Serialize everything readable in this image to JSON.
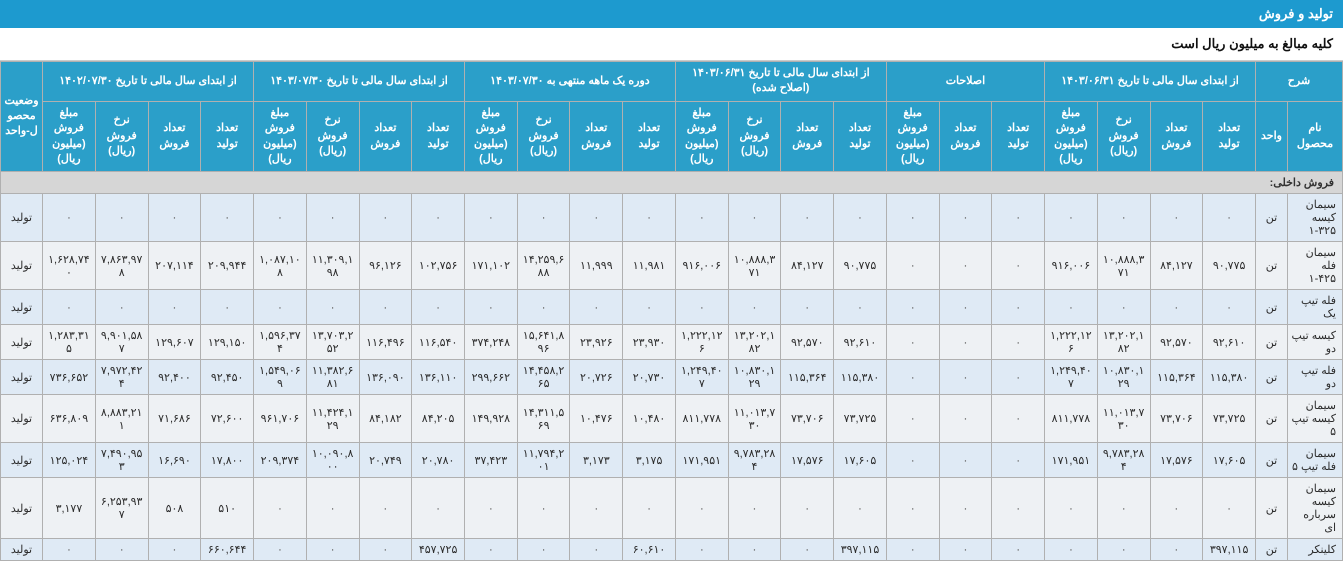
{
  "header": {
    "title": "تولید و فروش",
    "subtitle": "کلیه مبالغ به میلیون ریال است"
  },
  "columns_top": [
    {
      "label": "شرح",
      "span": 2
    },
    {
      "label": "از ابتدای سال مالی تا تاریخ ۱۴۰۳/۰۶/۳۱",
      "span": 4
    },
    {
      "label": "اصلاحات",
      "span": 3
    },
    {
      "label": "از ابتدای سال مالی تا تاریخ ۱۴۰۳/۰۶/۳۱ (اصلاح شده)",
      "span": 4
    },
    {
      "label": "دوره یک ماهه منتهی به ۱۴۰۳/۰۷/۳۰",
      "span": 4
    },
    {
      "label": "از ابتدای سال مالی تا تاریخ ۱۴۰۳/۰۷/۳۰",
      "span": 4
    },
    {
      "label": "از ابتدای سال مالی تا تاریخ ۱۴۰۲/۰۷/۳۰",
      "span": 4
    },
    {
      "label": "وضعیت محصول-واحد",
      "span": 1
    }
  ],
  "columns_sub": [
    "نام محصول",
    "واحد",
    "تعداد تولید",
    "تعداد فروش",
    "نرخ فروش (ریال)",
    "مبلغ فروش (میلیون ریال)",
    "تعداد تولید",
    "تعداد فروش",
    "مبلغ فروش (میلیون ریال)",
    "تعداد تولید",
    "تعداد فروش",
    "نرخ فروش (ریال)",
    "مبلغ فروش (میلیون ریال)",
    "تعداد تولید",
    "تعداد فروش",
    "نرخ فروش (ریال)",
    "مبلغ فروش (میلیون ریال)",
    "تعداد تولید",
    "تعداد فروش",
    "نرخ فروش (ریال)",
    "مبلغ فروش (میلیون ریال)",
    "تعداد تولید",
    "تعداد فروش",
    "نرخ فروش (ریال)",
    "مبلغ فروش (میلیون ریال)",
    "وضعیت"
  ],
  "section_label": "فروش داخلی:",
  "rows": [
    {
      "name": "سیمان کیسه ۳۲۵-۱",
      "unit": "تن",
      "cells": [
        "۰",
        "۰",
        "۰",
        "۰",
        "۰",
        "۰",
        "۰",
        "۰",
        "۰",
        "۰",
        "۰",
        "۰",
        "۰",
        "۰",
        "۰",
        "۰",
        "۰",
        "۰",
        "۰",
        "۰",
        "۰",
        "۰",
        "۰"
      ],
      "status": "تولید"
    },
    {
      "name": "سیمان فله ۴۲۵-۱",
      "unit": "تن",
      "cells": [
        "۹۰,۷۷۵",
        "۸۴,۱۲۷",
        "۱۰,۸۸۸,۳۷۱",
        "۹۱۶,۰۰۶",
        "۰",
        "۰",
        "۰",
        "۹۰,۷۷۵",
        "۸۴,۱۲۷",
        "۱۰,۸۸۸,۳۷۱",
        "۹۱۶,۰۰۶",
        "۱۱,۹۸۱",
        "۱۱,۹۹۹",
        "۱۴,۲۵۹,۶۸۸",
        "۱۷۱,۱۰۲",
        "۱۰۲,۷۵۶",
        "۹۶,۱۲۶",
        "۱۱,۳۰۹,۱۹۸",
        "۱,۰۸۷,۱۰۸",
        "۲۰۹,۹۴۴",
        "۲۰۷,۱۱۴",
        "۷,۸۶۳,۹۷۸",
        "۱,۶۲۸,۷۴۰"
      ],
      "status": "تولید"
    },
    {
      "name": "فله تیپ یک",
      "unit": "تن",
      "cells": [
        "۰",
        "۰",
        "۰",
        "۰",
        "۰",
        "۰",
        "۰",
        "۰",
        "۰",
        "۰",
        "۰",
        "۰",
        "۰",
        "۰",
        "۰",
        "۰",
        "۰",
        "۰",
        "۰",
        "۰",
        "۰",
        "۰",
        "۰"
      ],
      "status": "تولید"
    },
    {
      "name": "کیسه تیپ دو",
      "unit": "تن",
      "cells": [
        "۹۲,۶۱۰",
        "۹۲,۵۷۰",
        "۱۳,۲۰۲,۱۸۲",
        "۱,۲۲۲,۱۲۶",
        "۰",
        "۰",
        "۰",
        "۹۲,۶۱۰",
        "۹۲,۵۷۰",
        "۱۳,۲۰۲,۱۸۲",
        "۱,۲۲۲,۱۲۶",
        "۲۳,۹۳۰",
        "۲۳,۹۲۶",
        "۱۵,۶۴۱,۸۹۶",
        "۳۷۴,۲۴۸",
        "۱۱۶,۵۴۰",
        "۱۱۶,۴۹۶",
        "۱۳,۷۰۳,۲۵۲",
        "۱,۵۹۶,۳۷۴",
        "۱۲۹,۱۵۰",
        "۱۲۹,۶۰۷",
        "۹,۹۰۱,۵۸۷",
        "۱,۲۸۳,۳۱۵"
      ],
      "status": "تولید"
    },
    {
      "name": "فله تیپ دو",
      "unit": "تن",
      "cells": [
        "۱۱۵,۳۸۰",
        "۱۱۵,۳۶۴",
        "۱۰,۸۳۰,۱۲۹",
        "۱,۲۴۹,۴۰۷",
        "۰",
        "۰",
        "۰",
        "۱۱۵,۳۸۰",
        "۱۱۵,۳۶۴",
        "۱۰,۸۳۰,۱۲۹",
        "۱,۲۴۹,۴۰۷",
        "۲۰,۷۳۰",
        "۲۰,۷۲۶",
        "۱۴,۴۵۸,۲۶۵",
        "۲۹۹,۶۶۲",
        "۱۳۶,۱۱۰",
        "۱۳۶,۰۹۰",
        "۱۱,۳۸۲,۶۸۱",
        "۱,۵۴۹,۰۶۹",
        "۹۲,۴۵۰",
        "۹۲,۴۰۰",
        "۷,۹۷۲,۴۲۴",
        "۷۳۶,۶۵۲"
      ],
      "status": "تولید"
    },
    {
      "name": "سیمان کیسه تیپ ۵",
      "unit": "تن",
      "cells": [
        "۷۳,۷۲۵",
        "۷۳,۷۰۶",
        "۱۱,۰۱۳,۷۳۰",
        "۸۱۱,۷۷۸",
        "۰",
        "۰",
        "۰",
        "۷۳,۷۲۵",
        "۷۳,۷۰۶",
        "۱۱,۰۱۳,۷۳۰",
        "۸۱۱,۷۷۸",
        "۱۰,۴۸۰",
        "۱۰,۴۷۶",
        "۱۴,۳۱۱,۵۶۹",
        "۱۴۹,۹۲۸",
        "۸۴,۲۰۵",
        "۸۴,۱۸۲",
        "۱۱,۴۲۴,۱۲۹",
        "۹۶۱,۷۰۶",
        "۷۲,۶۰۰",
        "۷۱,۶۸۶",
        "۸,۸۸۳,۲۱۱",
        "۶۳۶,۸۰۹"
      ],
      "status": "تولید"
    },
    {
      "name": "سیمان فله تیپ ۵",
      "unit": "تن",
      "cells": [
        "۱۷,۶۰۵",
        "۱۷,۵۷۶",
        "۹,۷۸۳,۲۸۴",
        "۱۷۱,۹۵۱",
        "۰",
        "۰",
        "۰",
        "۱۷,۶۰۵",
        "۱۷,۵۷۶",
        "۹,۷۸۳,۲۸۴",
        "۱۷۱,۹۵۱",
        "۳,۱۷۵",
        "۳,۱۷۳",
        "۱۱,۷۹۴,۲۰۱",
        "۳۷,۴۲۳",
        "۲۰,۷۸۰",
        "۲۰,۷۴۹",
        "۱۰,۰۹۰,۸۰۰",
        "۲۰۹,۳۷۴",
        "۱۷,۸۰۰",
        "۱۶,۶۹۰",
        "۷,۴۹۰,۹۵۳",
        "۱۲۵,۰۲۴"
      ],
      "status": "تولید"
    },
    {
      "name": "سیمان کیسه سرباره ای",
      "unit": "تن",
      "cells": [
        "۰",
        "۰",
        "۰",
        "۰",
        "۰",
        "۰",
        "۰",
        "۰",
        "۰",
        "۰",
        "۰",
        "۰",
        "۰",
        "۰",
        "۰",
        "۰",
        "۰",
        "۰",
        "۰",
        "۵۱۰",
        "۵۰۸",
        "۶,۲۵۳,۹۳۷",
        "۳,۱۷۷"
      ],
      "status": "تولید"
    },
    {
      "name": "کلینکر",
      "unit": "تن",
      "cells": [
        "۳۹۷,۱۱۵",
        "۰",
        "۰",
        "۰",
        "۰",
        "۰",
        "۰",
        "۳۹۷,۱۱۵",
        "۰",
        "۰",
        "۰",
        "۶۰,۶۱۰",
        "۰",
        "۰",
        "۰",
        "۴۵۷,۷۲۵",
        "۰",
        "۰",
        "۰",
        "۶۶۰,۶۴۴",
        "۰",
        "۰",
        "۰"
      ],
      "status": "تولید"
    }
  ]
}
